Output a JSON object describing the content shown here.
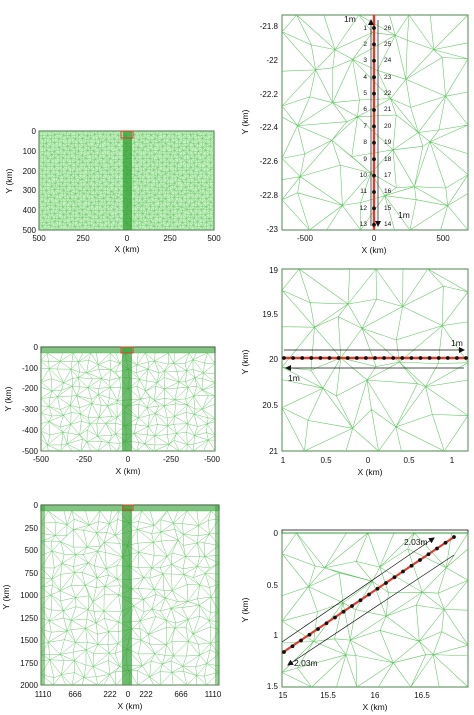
{
  "figure": {
    "panels": [
      {
        "id": "p1",
        "kind": "mesh-overview",
        "xlabel": "X (km)",
        "ylabel": "Y (km)",
        "x_ticks": [
          "500",
          "250",
          "0",
          "250",
          "500"
        ],
        "y_ticks": [
          "0",
          "100",
          "200",
          "300",
          "400",
          "500"
        ],
        "mesh_color": "#5cc85c",
        "highlight_color": "#e03a2a"
      },
      {
        "id": "p2",
        "kind": "vertical-well",
        "xlabel": "X (km)",
        "ylabel": "Y (km)",
        "x_ticks": [
          "-500",
          "0",
          "500"
        ],
        "y_ticks": [
          "-21.8",
          "-22",
          "-22.2",
          "-22.4",
          "-22.6",
          "-22.8",
          "-23"
        ],
        "node_numbers_left": [
          "1",
          "2",
          "3",
          "4",
          "5",
          "6",
          "7",
          "8",
          "9",
          "10",
          "11",
          "12",
          "13"
        ],
        "node_numbers_right": [
          "26",
          "25",
          "24",
          "23",
          "22",
          "21",
          "20",
          "19",
          "18",
          "17",
          "16",
          "15",
          "14"
        ],
        "annot_top": "1m",
        "annot_bottom": "1m"
      },
      {
        "id": "p3",
        "kind": "mesh-overview",
        "xlabel": "X (km)",
        "ylabel": "Y (km)",
        "x_ticks": [
          "-500",
          "-250",
          "0",
          "-250",
          "-500"
        ],
        "y_ticks": [
          "0",
          "-100",
          "-200",
          "-300",
          "-400",
          "-500"
        ]
      },
      {
        "id": "p4",
        "kind": "horizontal-well",
        "xlabel": "X (km)",
        "ylabel": "Y (km)",
        "x_ticks": [
          "1",
          "0.5",
          "0",
          "0.5",
          "1"
        ],
        "y_ticks": [
          "19",
          "19.5",
          "20",
          "20.5",
          "21"
        ],
        "annot_top": "1m",
        "annot_bottom": "1m"
      },
      {
        "id": "p5",
        "kind": "mesh-overview",
        "xlabel": "X (km)",
        "ylabel": "Y (km)",
        "x_ticks": [
          "1110",
          "666",
          "222",
          "0",
          "222",
          "666",
          "1110"
        ],
        "y_ticks": [
          "0",
          "250",
          "500",
          "750",
          "1000",
          "1250",
          "1500",
          "1750",
          "2000"
        ]
      },
      {
        "id": "p6",
        "kind": "inclined-well",
        "xlabel": "X (km)",
        "ylabel": "Y (km)",
        "x_ticks": [
          "15",
          "15.5",
          "16",
          "16.5"
        ],
        "y_ticks": [
          "0",
          "0.5",
          "1",
          "1.5"
        ],
        "annot_top": "2.03m",
        "annot_bottom": "2.03m"
      }
    ]
  }
}
